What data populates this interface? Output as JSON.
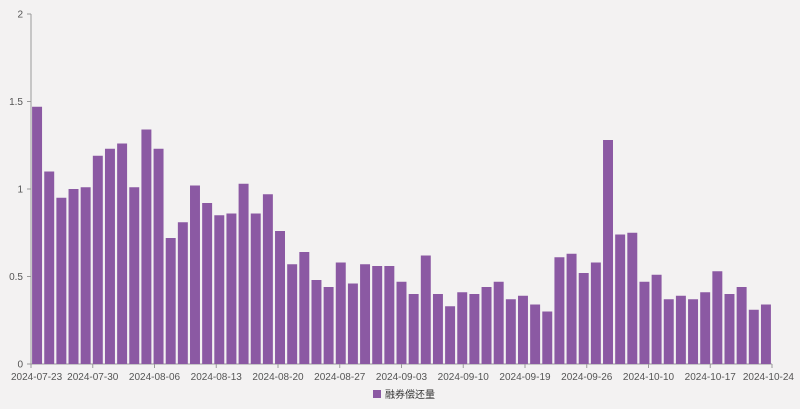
{
  "chart_data": {
    "type": "bar",
    "title": "",
    "xlabel": "",
    "ylabel": "",
    "ylim": [
      0,
      2
    ],
    "yticks": [
      "0",
      "0.5",
      "1",
      "1.5",
      "2"
    ],
    "grid": false,
    "legend_position": "bottom-center",
    "x_tick_labels": [
      "2024-07-23",
      "2024-07-30",
      "2024-08-06",
      "2024-08-13",
      "2024-08-20",
      "2024-08-27",
      "2024-09-03",
      "2024-09-10",
      "2024-09-19",
      "2024-09-26",
      "2024-10-10",
      "2024-10-17",
      "2024-10-24"
    ],
    "series": [
      {
        "name": "融券偿还量",
        "color": "#8b59a3",
        "values": [
          1.47,
          1.1,
          0.95,
          1.0,
          1.01,
          1.19,
          1.23,
          1.26,
          1.01,
          1.34,
          1.23,
          0.72,
          0.81,
          1.02,
          0.92,
          0.85,
          0.86,
          1.03,
          0.86,
          0.97,
          0.76,
          0.57,
          0.64,
          0.48,
          0.44,
          0.58,
          0.46,
          0.57,
          0.56,
          0.56,
          0.47,
          0.4,
          0.62,
          0.4,
          0.33,
          0.41,
          0.4,
          0.44,
          0.47,
          0.37,
          0.39,
          0.34,
          0.3,
          0.61,
          0.63,
          0.52,
          0.58,
          1.28,
          0.74,
          0.75,
          0.47,
          0.51,
          0.37,
          0.39,
          0.37,
          0.41,
          0.53,
          0.4,
          0.44,
          0.31,
          0.34
        ]
      }
    ]
  }
}
